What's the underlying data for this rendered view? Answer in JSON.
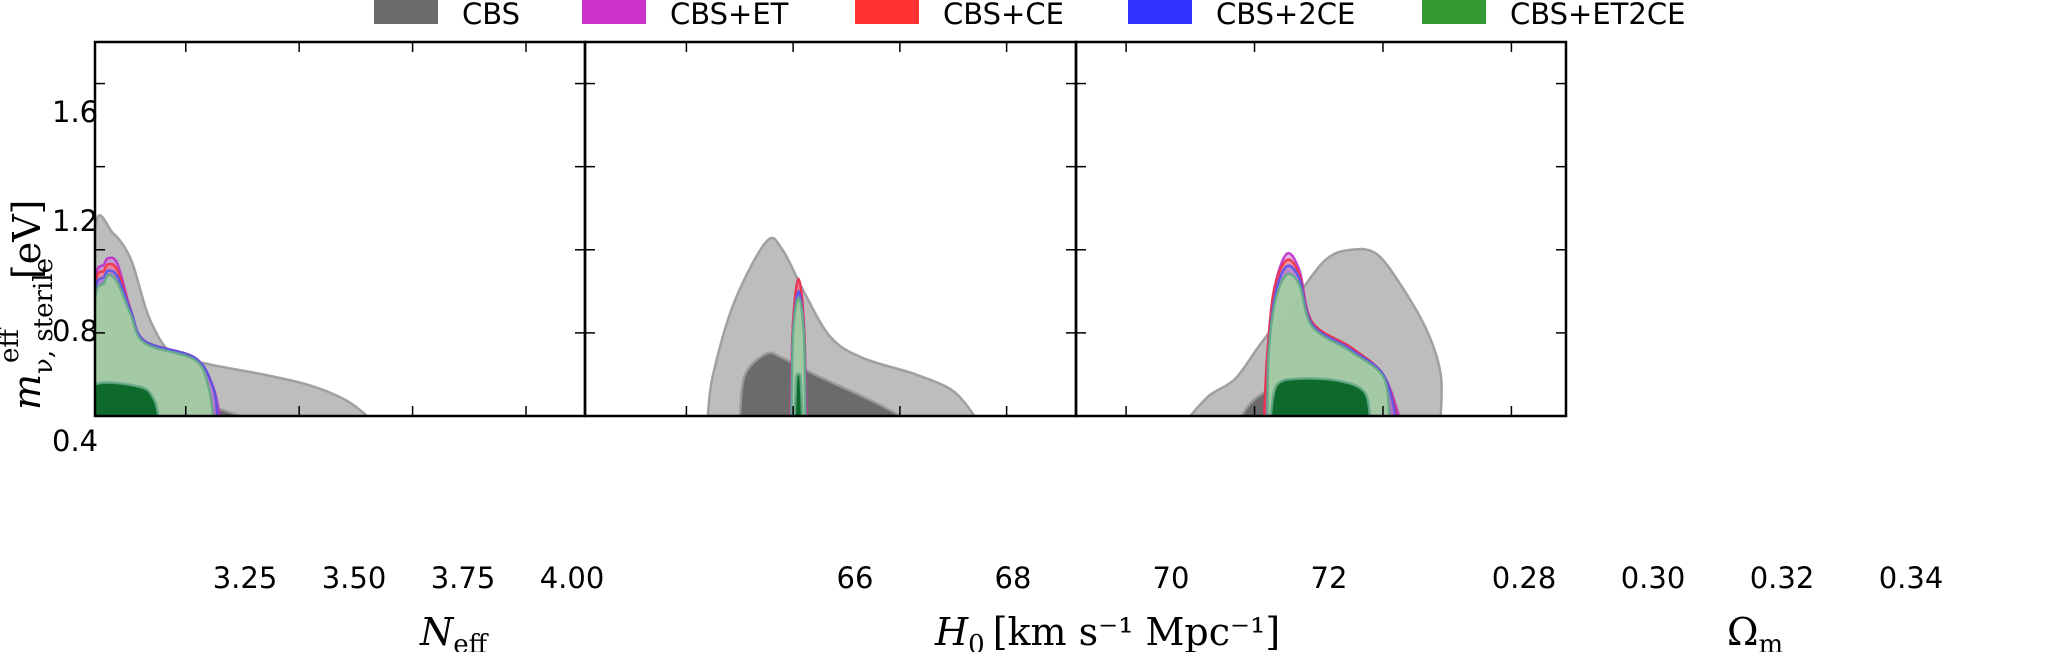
{
  "legend": [
    {
      "label": "CBS",
      "color": "#6b6b6b"
    },
    {
      "label": "CBS+ET",
      "color": "#cc33cc"
    },
    {
      "label": "CBS+CE",
      "color": "#ff3333"
    },
    {
      "label": "CBS+2CE",
      "color": "#3333ff"
    },
    {
      "label": "CBS+ET2CE",
      "color": "#339933"
    }
  ],
  "y_axis": {
    "label_main": "m",
    "label_super": "eff",
    "label_sub": "ν, sterile",
    "label_unit": "[eV]",
    "ticks": [
      "0.4",
      "0.8",
      "1.2",
      "1.6"
    ]
  },
  "panels": [
    {
      "xlabel_main": "N",
      "xlabel_sub": "eff",
      "xlabel_unit": "",
      "ticks": [
        "3.25",
        "3.50",
        "3.75",
        "4.00"
      ]
    },
    {
      "xlabel_main": "H",
      "xlabel_sub": "0",
      "xlabel_unit": "[km s⁻¹  Mpc⁻¹]",
      "ticks": [
        "66",
        "68",
        "70",
        "72"
      ]
    },
    {
      "xlabel_main": "Ω",
      "xlabel_sub": "m",
      "xlabel_unit": "",
      "ticks": [
        "0.28",
        "0.30",
        "0.32",
        "0.34"
      ]
    }
  ],
  "chart_data": [
    {
      "type": "contour",
      "xlabel": "N_eff",
      "ylabel": "m_ν,sterile^eff [eV]",
      "xlim": [
        3.05,
        4.13
      ],
      "ylim": [
        0.0,
        1.8
      ],
      "xticks": [
        3.25,
        3.5,
        3.75,
        4.0
      ],
      "yticks": [
        0.4,
        0.8,
        1.2,
        1.6
      ],
      "series": [
        {
          "name": "CBS",
          "contours": [
            {
              "level": "95%",
              "points": [
                [
                  3.05,
                  0.9
                ],
                [
                  3.09,
                  0.88
                ],
                [
                  3.13,
                  0.75
                ],
                [
                  3.17,
                  0.47
                ],
                [
                  3.22,
                  0.3
                ],
                [
                  3.3,
                  0.25
                ],
                [
                  3.42,
                  0.2
                ],
                [
                  3.52,
                  0.15
                ],
                [
                  3.6,
                  0.08
                ],
                [
                  3.65,
                  0
                ]
              ]
            },
            {
              "level": "68%",
              "points": [
                [
                  3.05,
                  0.16
                ],
                [
                  3.15,
                  0.15
                ],
                [
                  3.25,
                  0.08
                ],
                [
                  3.3,
                  0.05
                ],
                [
                  3.37,
                  0
                ]
              ]
            }
          ]
        },
        {
          "name": "CBS+ET",
          "contours": [
            {
              "level": "95%",
              "points": [
                [
                  3.05,
                  0.63
                ],
                [
                  3.07,
                  0.73
                ],
                [
                  3.08,
                  0.76
                ],
                [
                  3.1,
                  0.73
                ],
                [
                  3.13,
                  0.5
                ],
                [
                  3.16,
                  0.36
                ],
                [
                  3.27,
                  0.28
                ],
                [
                  3.31,
                  0.14
                ],
                [
                  3.325,
                  0
                ]
              ]
            }
          ]
        },
        {
          "name": "CBS+CE",
          "contours": [
            {
              "level": "95%",
              "points": [
                [
                  3.05,
                  0.61
                ],
                [
                  3.07,
                  0.7
                ],
                [
                  3.08,
                  0.73
                ],
                [
                  3.1,
                  0.7
                ],
                [
                  3.13,
                  0.5
                ],
                [
                  3.16,
                  0.36
                ],
                [
                  3.27,
                  0.28
                ],
                [
                  3.31,
                  0.14
                ],
                [
                  3.32,
                  0
                ]
              ]
            }
          ]
        },
        {
          "name": "CBS+2CE",
          "contours": [
            {
              "level": "95%",
              "points": [
                [
                  3.05,
                  0.58
                ],
                [
                  3.07,
                  0.67
                ],
                [
                  3.08,
                  0.7
                ],
                [
                  3.1,
                  0.67
                ],
                [
                  3.13,
                  0.5
                ],
                [
                  3.16,
                  0.36
                ],
                [
                  3.27,
                  0.28
                ],
                [
                  3.31,
                  0.14
                ],
                [
                  3.32,
                  0
                ]
              ]
            }
          ]
        },
        {
          "name": "CBS+ET2CE",
          "contours": [
            {
              "level": "95%",
              "points": [
                [
                  3.05,
                  0.55
                ],
                [
                  3.07,
                  0.64
                ],
                [
                  3.08,
                  0.68
                ],
                [
                  3.1,
                  0.64
                ],
                [
                  3.13,
                  0.48
                ],
                [
                  3.16,
                  0.35
                ],
                [
                  3.27,
                  0.27
                ],
                [
                  3.3,
                  0.14
                ],
                [
                  3.31,
                  0
                ]
              ]
            },
            {
              "level": "68%",
              "points": [
                [
                  3.05,
                  0.15
                ],
                [
                  3.15,
                  0.14
                ],
                [
                  3.18,
                  0.08
                ],
                [
                  3.19,
                  0
                ]
              ]
            }
          ]
        }
      ]
    },
    {
      "type": "contour",
      "xlabel": "H_0 [km s^-1 Mpc^-1]",
      "ylabel": "m_ν,sterile^eff [eV]",
      "xlim": [
        64.1,
        73.3
      ],
      "ylim": [
        0.0,
        1.8
      ],
      "xticks": [
        66,
        68,
        70,
        72
      ],
      "yticks": [
        0.4,
        0.8,
        1.2,
        1.6
      ],
      "series": [
        {
          "name": "CBS",
          "contours": [
            {
              "level": "95%",
              "points": [
                [
                  66.4,
                  0
                ],
                [
                  66.5,
                  0.2
                ],
                [
                  66.9,
                  0.55
                ],
                [
                  67.5,
                  0.84
                ],
                [
                  67.8,
                  0.8
                ],
                [
                  68.2,
                  0.6
                ],
                [
                  68.7,
                  0.38
                ],
                [
                  69.3,
                  0.28
                ],
                [
                  70.3,
                  0.2
                ],
                [
                  71.0,
                  0.12
                ],
                [
                  71.4,
                  0
                ]
              ]
            },
            {
              "level": "68%",
              "points": [
                [
                  67.0,
                  0
                ],
                [
                  67.1,
                  0.2
                ],
                [
                  67.5,
                  0.3
                ],
                [
                  67.8,
                  0.28
                ],
                [
                  68.4,
                  0.2
                ],
                [
                  69.5,
                  0.07
                ],
                [
                  70.0,
                  0
                ]
              ]
            }
          ]
        },
        {
          "name": "CBS+ET",
          "contours": [
            {
              "level": "95%",
              "points": [
                [
                  67.95,
                  0
                ],
                [
                  68.0,
                  0.45
                ],
                [
                  68.1,
                  0.66
                ],
                [
                  68.2,
                  0.45
                ],
                [
                  68.25,
                  0
                ]
              ]
            }
          ]
        },
        {
          "name": "CBS+CE",
          "contours": [
            {
              "level": "95%",
              "points": [
                [
                  67.95,
                  0
                ],
                [
                  68.0,
                  0.45
                ],
                [
                  68.1,
                  0.66
                ],
                [
                  68.2,
                  0.45
                ],
                [
                  68.25,
                  0
                ]
              ]
            }
          ]
        },
        {
          "name": "CBS+2CE",
          "contours": [
            {
              "level": "95%",
              "points": [
                [
                  67.96,
                  0
                ],
                [
                  68.0,
                  0.4
                ],
                [
                  68.1,
                  0.6
                ],
                [
                  68.2,
                  0.4
                ],
                [
                  68.24,
                  0
                ]
              ]
            }
          ]
        },
        {
          "name": "CBS+ET2CE",
          "contours": [
            {
              "level": "95%",
              "points": [
                [
                  67.97,
                  0
                ],
                [
                  68.0,
                  0.4
                ],
                [
                  68.1,
                  0.57
                ],
                [
                  68.2,
                  0.4
                ],
                [
                  68.23,
                  0
                ]
              ]
            },
            {
              "level": "68%",
              "points": [
                [
                  68.03,
                  0
                ],
                [
                  68.06,
                  0.18
                ],
                [
                  68.1,
                  0.2
                ],
                [
                  68.14,
                  0.18
                ],
                [
                  68.17,
                  0
                ]
              ]
            }
          ]
        }
      ]
    },
    {
      "type": "contour",
      "xlabel": "Ω_m",
      "ylabel": "m_ν,sterile^eff [eV]",
      "xlim": [
        0.2722,
        0.3485
      ],
      "ylim": [
        0.0,
        1.8
      ],
      "xticks": [
        0.28,
        0.3,
        0.32,
        0.34
      ],
      "yticks": [
        0.4,
        0.8,
        1.2,
        1.6
      ],
      "series": [
        {
          "name": "CBS",
          "contours": [
            {
              "level": "95%",
              "points": [
                [
                  0.29,
                  0
                ],
                [
                  0.293,
                  0.1
                ],
                [
                  0.297,
                  0.18
                ],
                [
                  0.301,
                  0.35
                ],
                [
                  0.306,
                  0.55
                ],
                [
                  0.311,
                  0.75
                ],
                [
                  0.315,
                  0.8
                ],
                [
                  0.319,
                  0.78
                ],
                [
                  0.323,
                  0.62
                ],
                [
                  0.327,
                  0.4
                ],
                [
                  0.329,
                  0.2
                ],
                [
                  0.329,
                  0
                ]
              ]
            },
            {
              "level": "68%",
              "points": [
                [
                  0.298,
                  0
                ],
                [
                  0.3,
                  0.08
                ],
                [
                  0.305,
                  0.17
                ],
                [
                  0.312,
                  0.19
                ],
                [
                  0.318,
                  0.15
                ],
                [
                  0.321,
                  0.09
                ],
                [
                  0.322,
                  0
                ]
              ]
            }
          ]
        },
        {
          "name": "CBS+ET",
          "contours": [
            {
              "level": "95%",
              "points": [
                [
                  0.3015,
                  0
                ],
                [
                  0.302,
                  0.3
                ],
                [
                  0.303,
                  0.6
                ],
                [
                  0.305,
                  0.78
                ],
                [
                  0.307,
                  0.7
                ],
                [
                  0.309,
                  0.45
                ],
                [
                  0.315,
                  0.33
                ],
                [
                  0.32,
                  0.2
                ],
                [
                  0.3225,
                  0
                ]
              ]
            }
          ]
        },
        {
          "name": "CBS+CE",
          "contours": [
            {
              "level": "95%",
              "points": [
                [
                  0.3015,
                  0
                ],
                [
                  0.302,
                  0.3
                ],
                [
                  0.303,
                  0.6
                ],
                [
                  0.305,
                  0.75
                ],
                [
                  0.307,
                  0.68
                ],
                [
                  0.309,
                  0.45
                ],
                [
                  0.315,
                  0.33
                ],
                [
                  0.32,
                  0.2
                ],
                [
                  0.3222,
                  0
                ]
              ]
            }
          ]
        },
        {
          "name": "CBS+2CE",
          "contours": [
            {
              "level": "95%",
              "points": [
                [
                  0.302,
                  0
                ],
                [
                  0.3022,
                  0.3
                ],
                [
                  0.3032,
                  0.58
                ],
                [
                  0.305,
                  0.72
                ],
                [
                  0.307,
                  0.66
                ],
                [
                  0.309,
                  0.44
                ],
                [
                  0.315,
                  0.32
                ],
                [
                  0.32,
                  0.2
                ],
                [
                  0.322,
                  0
                ]
              ]
            }
          ]
        },
        {
          "name": "CBS+ET2CE",
          "contours": [
            {
              "level": "95%",
              "points": [
                [
                  0.302,
                  0
                ],
                [
                  0.3022,
                  0.3
                ],
                [
                  0.3032,
                  0.55
                ],
                [
                  0.305,
                  0.68
                ],
                [
                  0.307,
                  0.63
                ],
                [
                  0.309,
                  0.43
                ],
                [
                  0.315,
                  0.31
                ],
                [
                  0.32,
                  0.19
                ],
                [
                  0.321,
                  0
                ]
              ]
            },
            {
              "level": "68%",
              "points": [
                [
                  0.3025,
                  0
                ],
                [
                  0.3035,
                  0.15
                ],
                [
                  0.307,
                  0.18
                ],
                [
                  0.313,
                  0.17
                ],
                [
                  0.317,
                  0.12
                ],
                [
                  0.318,
                  0
                ]
              ]
            }
          ]
        }
      ]
    }
  ]
}
